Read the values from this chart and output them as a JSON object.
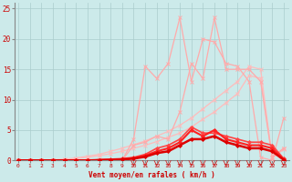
{
  "x": [
    0,
    1,
    2,
    3,
    4,
    5,
    6,
    7,
    8,
    9,
    10,
    11,
    12,
    13,
    14,
    15,
    16,
    17,
    18,
    19,
    20,
    21,
    22,
    23
  ],
  "jagged1": [
    0,
    0,
    0,
    0,
    0,
    0,
    0,
    0,
    0,
    0,
    3.5,
    15.5,
    13.5,
    16,
    23.5,
    13,
    20,
    19.5,
    16,
    15.5,
    13.0,
    0.5,
    0,
    7.0
  ],
  "jagged2": [
    0,
    0,
    0,
    0,
    0,
    0,
    0,
    0,
    0,
    0,
    2.5,
    3.0,
    4.0,
    3.5,
    8.0,
    16,
    13.5,
    23.5,
    15,
    15,
    15,
    13,
    0.5,
    2.0
  ],
  "diag1": [
    0,
    0,
    0,
    0.1,
    0.2,
    0.4,
    0.7,
    1.0,
    1.5,
    2.0,
    2.6,
    3.2,
    4.0,
    4.8,
    5.8,
    7.0,
    8.5,
    10.0,
    11.5,
    13.0,
    15.5,
    15.0,
    0.5,
    2.0
  ],
  "diag2": [
    0,
    0,
    0,
    0.05,
    0.15,
    0.3,
    0.5,
    0.8,
    1.1,
    1.5,
    2.0,
    2.5,
    3.1,
    3.8,
    4.5,
    5.5,
    6.8,
    8.0,
    9.5,
    11.0,
    14.0,
    13.5,
    0.4,
    1.8
  ],
  "low1": [
    0,
    0,
    0,
    0,
    0,
    0,
    0,
    0.1,
    0.2,
    0.3,
    0.5,
    1.0,
    2.0,
    2.5,
    3.5,
    5.5,
    4.5,
    4.5,
    4.0,
    3.5,
    3.0,
    3.0,
    2.5,
    0.3
  ],
  "low2": [
    0,
    0,
    0,
    0,
    0,
    0,
    0,
    0.05,
    0.1,
    0.2,
    0.4,
    0.8,
    1.5,
    2.0,
    3.0,
    5.0,
    4.0,
    5.0,
    3.5,
    3.0,
    2.5,
    2.5,
    2.0,
    0.2
  ],
  "low3": [
    0,
    0,
    0,
    0,
    0,
    0,
    0,
    0.05,
    0.1,
    0.15,
    0.3,
    0.6,
    1.2,
    1.5,
    2.5,
    3.5,
    3.5,
    4.0,
    3.0,
    2.5,
    2.0,
    2.0,
    1.5,
    0.1
  ],
  "bg_color": "#cceaea",
  "grid_color": "#aacccc",
  "jagged_color": "#ffaaaa",
  "diag_color": "#ffbbbb",
  "low_color1": "#ff4444",
  "low_color2": "#ff2222",
  "low_color3": "#dd0000",
  "xlabel": "Vent moyen/en rafales ( km/h )",
  "ylabel_vals": [
    0,
    5,
    10,
    15,
    20,
    25
  ],
  "xlim": [
    -0.3,
    23.5
  ],
  "ylim": [
    0,
    26
  ]
}
